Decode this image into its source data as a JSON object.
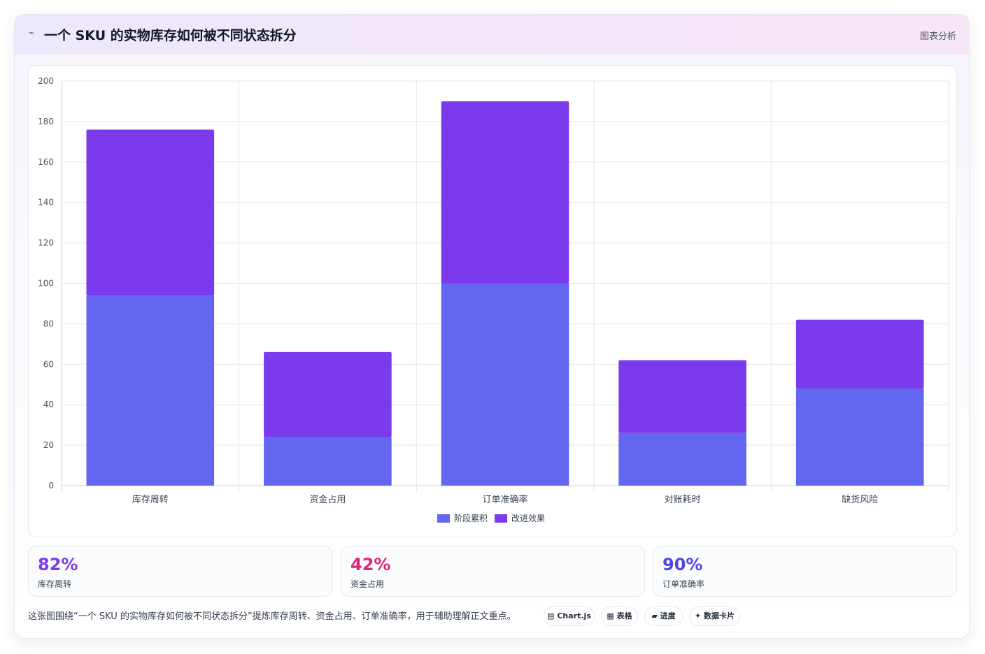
{
  "header": {
    "icon": "chart-icon",
    "title": "一个 SKU 的实物库存如何被不同状态拆分",
    "tag": "图表分析"
  },
  "colors": {
    "series1": "#6366f1",
    "series2": "#7c3aed",
    "stat1": "#7c3aed",
    "stat2": "#db2777",
    "stat3": "#4f46e5"
  },
  "chart_data": {
    "type": "bar",
    "stacked": true,
    "categories": [
      "库存周转",
      "资金占用",
      "订单准确率",
      "对账耗时",
      "缺货风险"
    ],
    "series": [
      {
        "name": "阶段累积",
        "values": [
          94,
          24,
          100,
          26,
          48
        ]
      },
      {
        "name": "改进效果",
        "values": [
          82,
          42,
          90,
          36,
          34
        ]
      }
    ],
    "ylim": [
      0,
      200
    ],
    "yticks": [
      0,
      20,
      40,
      60,
      80,
      100,
      120,
      140,
      160,
      180,
      200
    ],
    "grid": true,
    "legend_position": "bottom"
  },
  "stats": [
    {
      "value": "82%",
      "label": "库存周转"
    },
    {
      "value": "42%",
      "label": "资金占用"
    },
    {
      "value": "90%",
      "label": "订单准确率"
    }
  ],
  "caption": "这张图围绕“一个 SKU 的实物库存如何被不同状态拆分”提炼库存周转、资金占用、订单准确率，用于辅助理解正文重点。",
  "chips": [
    {
      "icon": "chart-icon",
      "label": "Chart.js"
    },
    {
      "icon": "table-icon",
      "label": "表格"
    },
    {
      "icon": "progress-icon",
      "label": "进度"
    },
    {
      "icon": "card-icon",
      "label": "数据卡片"
    }
  ],
  "chip_glyphs": [
    "▤",
    "▦",
    "▰",
    "✦"
  ]
}
